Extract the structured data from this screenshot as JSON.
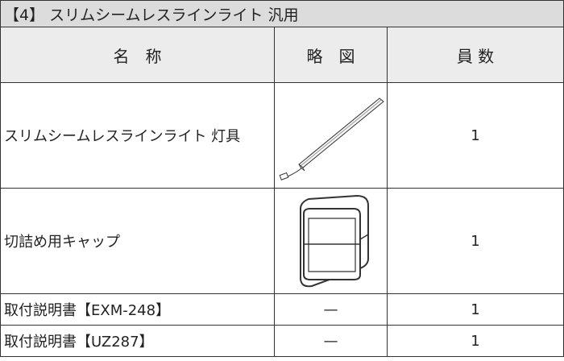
{
  "title": "【4】 スリムシームレスラインライト 汎用",
  "table": {
    "header": [
      "名　称",
      "略　図",
      "員 数"
    ],
    "rows": [
      {
        "name": "スリムシームレスラインライト 灯具",
        "quantity": "1"
      },
      {
        "name": "切詰め用キャップ",
        "quantity": "1"
      },
      {
        "name": "取付説明書【EXM-248】",
        "diagram": "—",
        "quantity": "1"
      },
      {
        "name": "取付説明書【UZ287】",
        "diagram": "—",
        "quantity": "1"
      }
    ]
  }
}
